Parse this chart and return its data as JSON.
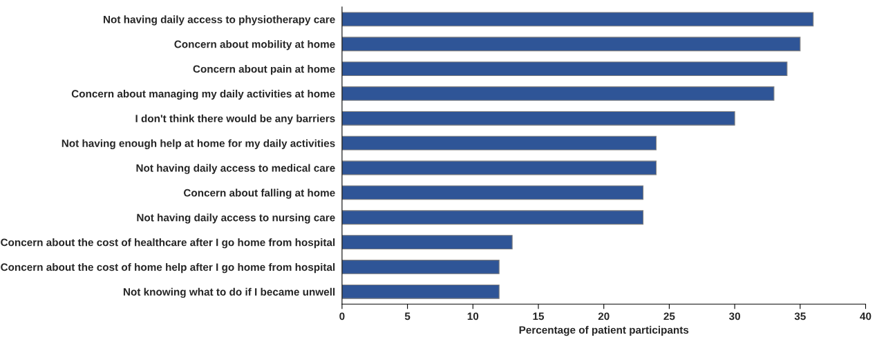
{
  "chart_data": {
    "type": "bar",
    "orientation": "horizontal",
    "xlabel": "Percentage of patient participants",
    "categories": [
      "Not having daily access to physiotherapy care",
      "Concern about mobility at home",
      "Concern about pain at home",
      "Concern about managing my daily activities at home",
      "I don't think there would be any barriers",
      "Not having enough help at home for my daily activities",
      "Not having daily access to medical care",
      "Concern about falling at home",
      "Not having daily access to nursing care",
      "Concern about the cost of healthcare after I go home from hospital",
      "Concern about the cost of home help after I go home from hospital",
      "Not knowing what to do if I became unwell"
    ],
    "values": [
      36,
      35,
      34,
      33,
      30,
      24,
      24,
      23,
      23,
      13,
      12,
      12
    ],
    "color": "#2f5597",
    "xlim": [
      0,
      40
    ],
    "xticks": [
      0,
      5,
      10,
      15,
      20,
      25,
      30,
      35,
      40
    ],
    "grid": false
  }
}
